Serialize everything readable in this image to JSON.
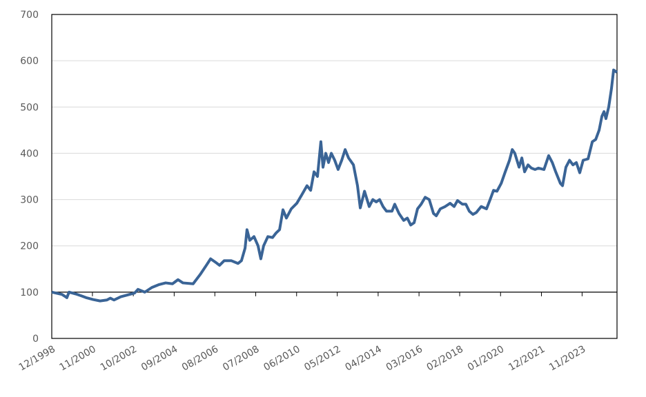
{
  "chart_data": {
    "type": "line",
    "x": [
      1998.92,
      1999.4,
      1999.57,
      1999.63,
      1999.73,
      2000.05,
      2000.31,
      2000.54,
      2000.86,
      2001.19,
      2001.51,
      2001.67,
      2001.84,
      2002.16,
      2002.48,
      2002.81,
      2002.97,
      2003.29,
      2003.62,
      2003.94,
      2004.27,
      2004.59,
      2004.85,
      2005.08,
      2005.56,
      2005.89,
      2006.21,
      2006.38,
      2006.6,
      2006.8,
      2007.02,
      2007.35,
      2007.67,
      2007.83,
      2008.0,
      2008.09,
      2008.22,
      2008.42,
      2008.61,
      2008.74,
      2008.87,
      2009.07,
      2009.29,
      2009.46,
      2009.62,
      2009.78,
      2009.94,
      2010.17,
      2010.43,
      2010.66,
      2010.91,
      2011.08,
      2011.24,
      2011.4,
      2011.56,
      2011.66,
      2011.79,
      2011.92,
      2012.05,
      2012.21,
      2012.37,
      2012.54,
      2012.7,
      2012.86,
      2013.09,
      2013.28,
      2013.41,
      2013.61,
      2013.83,
      2014.0,
      2014.16,
      2014.32,
      2014.48,
      2014.64,
      2014.9,
      2015.03,
      2015.23,
      2015.45,
      2015.62,
      2015.78,
      2015.94,
      2016.1,
      2016.27,
      2016.46,
      2016.65,
      2016.85,
      2016.98,
      2017.17,
      2017.4,
      2017.63,
      2017.82,
      2017.98,
      2018.21,
      2018.37,
      2018.53,
      2018.7,
      2018.86,
      2019.09,
      2019.34,
      2019.51,
      2019.67,
      2019.83,
      2020.03,
      2020.22,
      2020.42,
      2020.55,
      2020.67,
      2020.87,
      2021.0,
      2021.13,
      2021.29,
      2021.45,
      2021.62,
      2021.78,
      2022.04,
      2022.26,
      2022.43,
      2022.59,
      2022.81,
      2022.91,
      2023.07,
      2023.24,
      2023.4,
      2023.56,
      2023.72,
      2023.88,
      2024.11,
      2024.31,
      2024.47,
      2024.63,
      2024.76,
      2024.86,
      2024.95,
      2025.08,
      2025.21,
      2025.31,
      2025.47
    ],
    "series": [
      {
        "color": "#3a6496",
        "values": [
          100,
          95,
          90,
          88,
          100,
          96,
          92,
          88,
          84,
          81,
          83,
          87,
          83,
          90,
          94,
          98,
          106,
          100,
          110,
          116,
          120,
          118,
          127,
          120,
          118,
          138,
          160,
          172,
          165,
          158,
          168,
          168,
          162,
          168,
          195,
          235,
          212,
          220,
          200,
          172,
          200,
          220,
          218,
          228,
          235,
          278,
          260,
          280,
          292,
          310,
          330,
          320,
          360,
          350,
          425,
          370,
          400,
          380,
          400,
          385,
          365,
          385,
          408,
          390,
          375,
          330,
          282,
          318,
          285,
          300,
          295,
          300,
          285,
          275,
          275,
          290,
          270,
          255,
          260,
          245,
          250,
          280,
          290,
          305,
          300,
          270,
          265,
          280,
          285,
          292,
          285,
          298,
          290,
          290,
          275,
          268,
          272,
          285,
          280,
          300,
          320,
          318,
          335,
          360,
          385,
          408,
          400,
          370,
          390,
          360,
          375,
          368,
          365,
          368,
          365,
          395,
          380,
          360,
          335,
          330,
          370,
          385,
          375,
          380,
          358,
          385,
          388,
          425,
          430,
          450,
          480,
          490,
          475,
          500,
          540,
          580,
          575
        ]
      }
    ],
    "xlim": [
      1998.92,
      2025.47
    ],
    "xticks": [
      {
        "value": 1998.92,
        "label": "12/1998"
      },
      {
        "value": 2000.83,
        "label": "11/2000"
      },
      {
        "value": 2002.75,
        "label": "10/2002"
      },
      {
        "value": 2004.67,
        "label": "09/2004"
      },
      {
        "value": 2006.58,
        "label": "08/2006"
      },
      {
        "value": 2008.5,
        "label": "07/2008"
      },
      {
        "value": 2010.42,
        "label": "06/2010"
      },
      {
        "value": 2012.33,
        "label": "05/2012"
      },
      {
        "value": 2014.25,
        "label": "04/2014"
      },
      {
        "value": 2016.17,
        "label": "03/2016"
      },
      {
        "value": 2018.08,
        "label": "02/2018"
      },
      {
        "value": 2020.0,
        "label": "01/2020"
      },
      {
        "value": 2021.92,
        "label": "12/2021"
      },
      {
        "value": 2023.83,
        "label": "11/2023"
      }
    ],
    "ylim": [
      0,
      700
    ],
    "yticks": [
      0,
      100,
      200,
      300,
      400,
      500,
      600,
      700
    ],
    "grid": true,
    "x_axis_at": 100
  }
}
